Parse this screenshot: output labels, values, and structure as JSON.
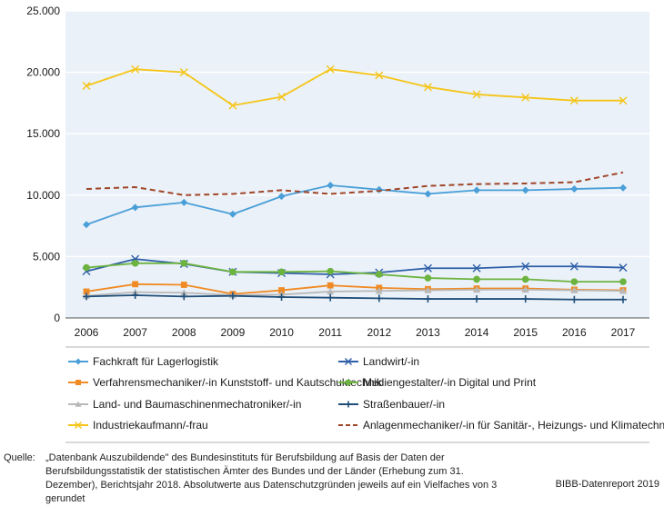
{
  "chart_data": {
    "type": "line",
    "title": "",
    "xlabel": "",
    "ylabel": "",
    "x": [
      2006,
      2007,
      2008,
      2009,
      2010,
      2011,
      2012,
      2013,
      2014,
      2015,
      2016,
      2017
    ],
    "ylim": [
      0,
      25000
    ],
    "yticks": [
      0,
      5000,
      10000,
      15000,
      20000,
      25000
    ],
    "ytick_labels": [
      "0",
      "5.000",
      "10.000",
      "15.000",
      "20.000",
      "25.000"
    ],
    "grid": "horizontal",
    "series": [
      {
        "name": "Fachkraft für Lagerlogistik",
        "color": "#4a9fd8",
        "marker": "diamond",
        "dash": "solid",
        "values": [
          7600,
          9000,
          9400,
          8450,
          9900,
          10800,
          10450,
          10100,
          10400,
          10400,
          10500,
          10600
        ]
      },
      {
        "name": "Landwirt/-in",
        "color": "#2e5fa8",
        "marker": "x",
        "dash": "solid",
        "values": [
          3800,
          4800,
          4400,
          3750,
          3650,
          3550,
          3700,
          4050,
          4050,
          4200,
          4200,
          4100
        ]
      },
      {
        "name": "Verfahrensmechaniker/-in Kunststoff- und Kautschuktechnik",
        "color": "#f08a24",
        "marker": "square",
        "dash": "solid",
        "values": [
          2150,
          2750,
          2700,
          1950,
          2250,
          2650,
          2450,
          2350,
          2400,
          2400,
          2300,
          2250
        ]
      },
      {
        "name": "Mediengestalter/-in Digital und Print",
        "color": "#6cb33f",
        "marker": "circle",
        "dash": "solid",
        "values": [
          4100,
          4450,
          4450,
          3750,
          3750,
          3800,
          3550,
          3250,
          3150,
          3150,
          2950,
          2950
        ]
      },
      {
        "name": "Land- und Baumaschinenmechatroniker/-in",
        "color": "#b9b9b9",
        "marker": "triangle",
        "dash": "solid",
        "values": [
          1800,
          2100,
          2050,
          1850,
          1900,
          2150,
          2200,
          2250,
          2300,
          2300,
          2250,
          2200
        ]
      },
      {
        "name": "Straßenbauer/-in",
        "color": "#1f4e79",
        "marker": "plus",
        "dash": "solid",
        "values": [
          1750,
          1850,
          1750,
          1800,
          1700,
          1650,
          1600,
          1550,
          1550,
          1550,
          1500,
          1500
        ]
      },
      {
        "name": "Industriekaufmann/-frau",
        "color": "#f5c518",
        "marker": "x",
        "dash": "solid",
        "values": [
          18900,
          20250,
          20000,
          17300,
          18000,
          20250,
          19750,
          18800,
          18200,
          17950,
          17700,
          17700
        ]
      },
      {
        "name": "Anlagenmechaniker/-in für Sanitär-, Heizungs- und Klimatechnik",
        "color": "#a0462a",
        "marker": "none",
        "dash": "dashed",
        "values": [
          10500,
          10650,
          10000,
          10100,
          10400,
          10100,
          10350,
          10750,
          10900,
          10950,
          11050,
          11850
        ]
      }
    ]
  },
  "footer": {
    "source_label": "Quelle:",
    "source_text": "„Datenbank Auszubildende\" des Bundesinstituts für Berufsbildung auf Basis der Daten der Berufsbildungsstatistik der statistischen Ämter des Bundes und der Länder (Erhebung zum 31. Dezember), Berichtsjahr 2018. Absolutwerte aus Datenschutzgründen jeweils auf ein Vielfaches von 3 gerundet",
    "credit": "BIBB-Datenreport 2019"
  }
}
